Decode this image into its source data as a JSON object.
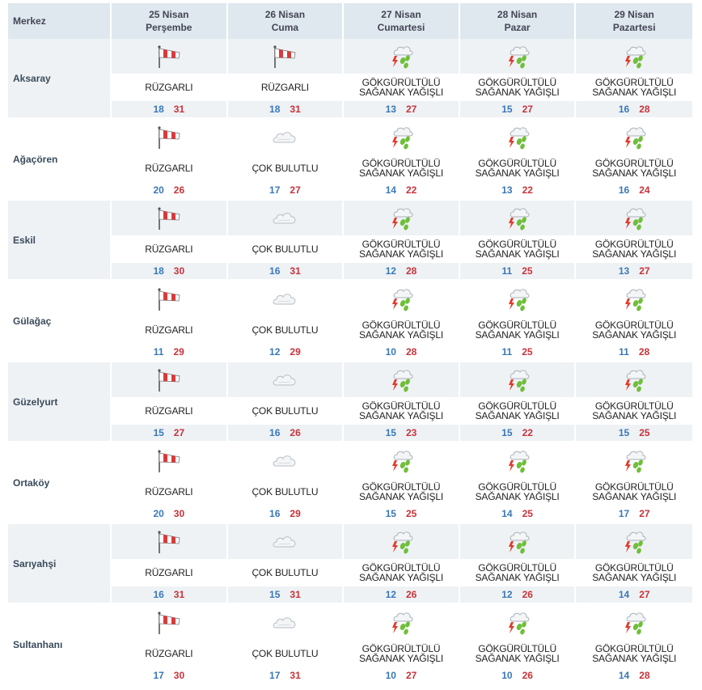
{
  "header": {
    "merkez": "Merkez",
    "days": [
      {
        "date": "25 Nisan",
        "day": "Perşembe"
      },
      {
        "date": "26 Nisan",
        "day": "Cuma"
      },
      {
        "date": "27 Nisan",
        "day": "Cumartesi"
      },
      {
        "date": "28 Nisan",
        "day": "Pazar"
      },
      {
        "date": "29 Nisan",
        "day": "Pazartesi"
      }
    ]
  },
  "conditions": {
    "wind": {
      "label": "RÜZGARLI",
      "icon": "windsock-icon"
    },
    "cloudy": {
      "label": "ÇOK BULUTLU",
      "icon": "cloud-icon"
    },
    "storm": {
      "line1": "GÖKGÜRÜLTÜLÜ",
      "line2": "SAĞANAK YAĞIŞLI",
      "icon": "thunderstorm-icon"
    }
  },
  "colors": {
    "low": "#3a78b8",
    "high": "#c8333a",
    "shade": "#eef2f5",
    "header": "#dfe8ee"
  },
  "cities": [
    {
      "name": "Aksaray",
      "days": [
        {
          "cond": "wind",
          "low": "18",
          "high": "31"
        },
        {
          "cond": "wind",
          "low": "18",
          "high": "31"
        },
        {
          "cond": "storm",
          "low": "13",
          "high": "27"
        },
        {
          "cond": "storm",
          "low": "15",
          "high": "27"
        },
        {
          "cond": "storm",
          "low": "16",
          "high": "28"
        }
      ]
    },
    {
      "name": "Ağaçören",
      "days": [
        {
          "cond": "wind",
          "low": "20",
          "high": "26"
        },
        {
          "cond": "cloudy",
          "low": "17",
          "high": "27"
        },
        {
          "cond": "storm",
          "low": "14",
          "high": "22"
        },
        {
          "cond": "storm",
          "low": "13",
          "high": "22"
        },
        {
          "cond": "storm",
          "low": "16",
          "high": "24"
        }
      ]
    },
    {
      "name": "Eskil",
      "days": [
        {
          "cond": "wind",
          "low": "18",
          "high": "30"
        },
        {
          "cond": "cloudy",
          "low": "16",
          "high": "31"
        },
        {
          "cond": "storm",
          "low": "12",
          "high": "28"
        },
        {
          "cond": "storm",
          "low": "11",
          "high": "25"
        },
        {
          "cond": "storm",
          "low": "13",
          "high": "27"
        }
      ]
    },
    {
      "name": "Gülağaç",
      "days": [
        {
          "cond": "wind",
          "low": "11",
          "high": "29"
        },
        {
          "cond": "cloudy",
          "low": "12",
          "high": "29"
        },
        {
          "cond": "storm",
          "low": "10",
          "high": "28"
        },
        {
          "cond": "storm",
          "low": "11",
          "high": "25"
        },
        {
          "cond": "storm",
          "low": "11",
          "high": "28"
        }
      ]
    },
    {
      "name": "Güzelyurt",
      "days": [
        {
          "cond": "wind",
          "low": "15",
          "high": "27"
        },
        {
          "cond": "cloudy",
          "low": "16",
          "high": "26"
        },
        {
          "cond": "storm",
          "low": "15",
          "high": "23"
        },
        {
          "cond": "storm",
          "low": "15",
          "high": "22"
        },
        {
          "cond": "storm",
          "low": "15",
          "high": "25"
        }
      ]
    },
    {
      "name": "Ortaköy",
      "days": [
        {
          "cond": "wind",
          "low": "20",
          "high": "30"
        },
        {
          "cond": "cloudy",
          "low": "16",
          "high": "29"
        },
        {
          "cond": "storm",
          "low": "15",
          "high": "25"
        },
        {
          "cond": "storm",
          "low": "14",
          "high": "25"
        },
        {
          "cond": "storm",
          "low": "17",
          "high": "27"
        }
      ]
    },
    {
      "name": "Sarıyahşi",
      "days": [
        {
          "cond": "wind",
          "low": "16",
          "high": "31"
        },
        {
          "cond": "cloudy",
          "low": "15",
          "high": "31"
        },
        {
          "cond": "storm",
          "low": "12",
          "high": "26"
        },
        {
          "cond": "storm",
          "low": "12",
          "high": "26"
        },
        {
          "cond": "storm",
          "low": "14",
          "high": "27"
        }
      ]
    },
    {
      "name": "Sultanhanı",
      "days": [
        {
          "cond": "wind",
          "low": "17",
          "high": "30"
        },
        {
          "cond": "cloudy",
          "low": "17",
          "high": "31"
        },
        {
          "cond": "storm",
          "low": "10",
          "high": "27"
        },
        {
          "cond": "storm",
          "low": "10",
          "high": "26"
        },
        {
          "cond": "storm",
          "low": "14",
          "high": "28"
        }
      ]
    }
  ]
}
